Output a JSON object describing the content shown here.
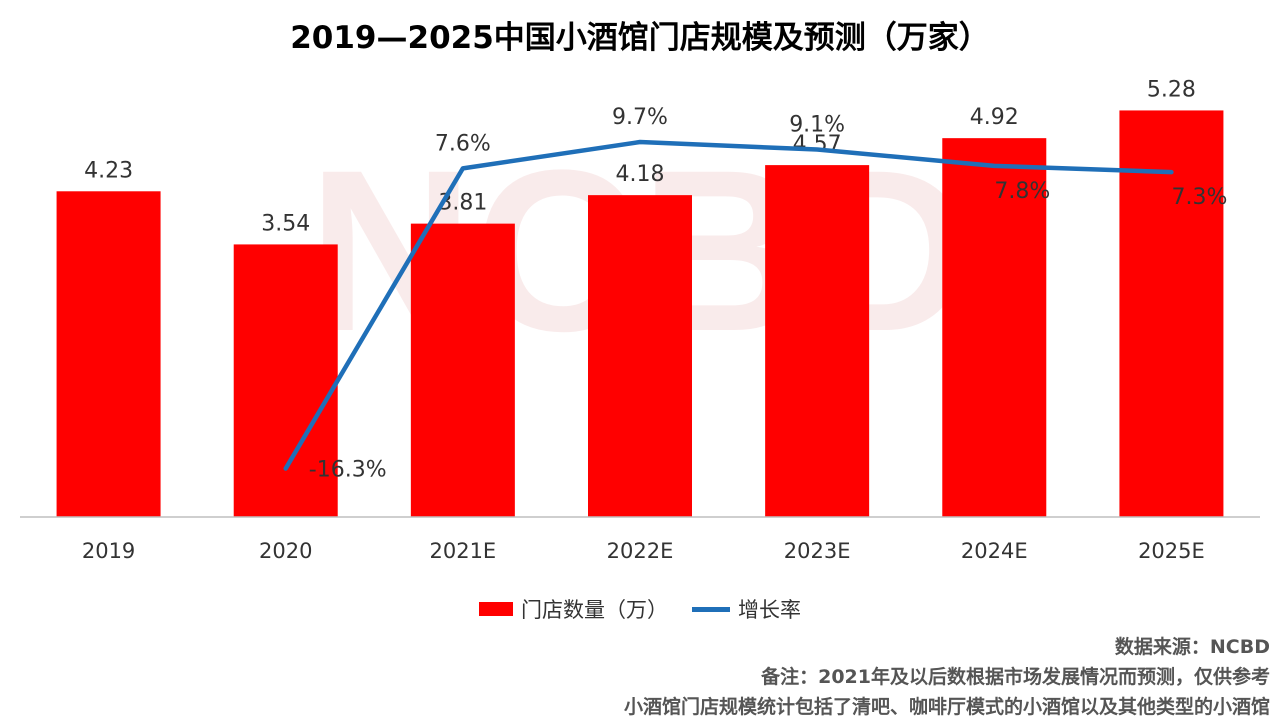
{
  "chart_data": {
    "type": "bar",
    "title": "2019—2025中国小酒馆门店规模及预测（万家）",
    "categories": [
      "2019",
      "2020",
      "2021E",
      "2022E",
      "2023E",
      "2024E",
      "2025E"
    ],
    "series": [
      {
        "name": "门店数量（万）",
        "type": "bar",
        "values": [
          4.23,
          3.54,
          3.81,
          4.18,
          4.57,
          4.92,
          5.28
        ],
        "labels": [
          "4.23",
          "3.54",
          "3.81",
          "4.18",
          "4.57",
          "4.92",
          "5.28"
        ]
      },
      {
        "name": "增长率",
        "type": "line",
        "values": [
          null,
          -16.3,
          7.6,
          9.7,
          9.1,
          7.8,
          7.3
        ],
        "labels": [
          "",
          "-16.3%",
          "7.6%",
          "9.7%",
          "9.1%",
          "7.8%",
          "7.3%"
        ]
      }
    ],
    "bar_axis_range": [
      0,
      6.0
    ],
    "line_axis_range": [
      -20,
      14
    ],
    "gridlines": false,
    "legend_position": "bottom",
    "colors": {
      "bar": "#ff0000",
      "line": "#1f6fb8"
    }
  },
  "watermark": "NCBD",
  "notes": {
    "source": "数据来源：NCBD",
    "remark": "备注：2021年及以后数根据市场发展情况而预测，仅供参考",
    "scope": "小酒馆门店规模统计包括了清吧、咖啡厅模式的小酒馆以及其他类型的小酒馆"
  }
}
